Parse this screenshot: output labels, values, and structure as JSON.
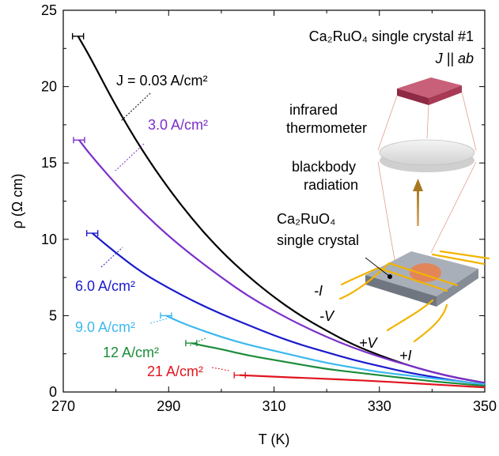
{
  "chart_data": {
    "type": "line",
    "xlabel": "T (K)",
    "ylabel": "ρ (Ω cm)",
    "xlim": [
      270,
      350
    ],
    "ylim": [
      0,
      25
    ],
    "xticks": [
      270,
      290,
      310,
      330,
      350
    ],
    "yticks": [
      0,
      5,
      10,
      15,
      20,
      25
    ],
    "series": [
      {
        "name": "J = 0.03 A/cm²",
        "color": "#000000",
        "x_start": 272.8,
        "y_start": 23.3,
        "x": [
          272.8,
          275,
          280,
          285,
          290,
          295,
          300,
          305,
          310,
          315,
          320,
          325,
          330,
          335,
          340,
          345,
          350
        ],
        "y": [
          23.3,
          22.0,
          18.7,
          15.8,
          13.3,
          11.1,
          9.2,
          7.6,
          6.2,
          5.0,
          4.0,
          3.1,
          2.4,
          1.8,
          1.3,
          0.9,
          0.6
        ]
      },
      {
        "name": "3.0 A/cm²",
        "color": "#7b2fc9",
        "x_start": 273.0,
        "y_start": 16.5,
        "x": [
          273,
          275,
          280,
          285,
          290,
          295,
          300,
          305,
          310,
          315,
          320,
          325,
          330,
          335,
          340,
          345,
          350
        ],
        "y": [
          16.5,
          15.6,
          13.6,
          11.8,
          10.2,
          8.8,
          7.5,
          6.3,
          5.3,
          4.4,
          3.6,
          2.9,
          2.3,
          1.8,
          1.3,
          0.9,
          0.6
        ]
      },
      {
        "name": "6.0 A/cm²",
        "color": "#1a1acc",
        "x_start": 275.5,
        "y_start": 10.4,
        "x": [
          275.5,
          280,
          285,
          290,
          295,
          300,
          305,
          310,
          315,
          320,
          325,
          330,
          335,
          340,
          345,
          350
        ],
        "y": [
          10.4,
          9.1,
          7.8,
          6.8,
          5.9,
          5.1,
          4.4,
          3.7,
          3.1,
          2.6,
          2.1,
          1.7,
          1.3,
          1.0,
          0.7,
          0.5
        ]
      },
      {
        "name": "9.0 A/cm²",
        "color": "#3cb8f0",
        "x_start": 289.5,
        "y_start": 5.0,
        "x": [
          289.5,
          292,
          295,
          300,
          305,
          310,
          315,
          320,
          325,
          330,
          335,
          340,
          345,
          350
        ],
        "y": [
          5.0,
          4.6,
          4.2,
          3.6,
          3.1,
          2.7,
          2.3,
          1.9,
          1.6,
          1.3,
          1.1,
          0.9,
          0.7,
          0.5
        ]
      },
      {
        "name": "12 A/cm²",
        "color": "#1a8c3a",
        "x_start": 294.3,
        "y_start": 3.2,
        "x": [
          294.3,
          297,
          300,
          305,
          310,
          315,
          320,
          325,
          330,
          335,
          340,
          345,
          350
        ],
        "y": [
          3.2,
          3.0,
          2.8,
          2.4,
          2.1,
          1.8,
          1.5,
          1.3,
          1.1,
          0.9,
          0.7,
          0.55,
          0.4
        ]
      },
      {
        "name": "21 A/cm²",
        "color": "#e0141e",
        "x_start": 303.5,
        "y_start": 1.1,
        "x": [
          303.5,
          305,
          310,
          315,
          320,
          325,
          330,
          335,
          340,
          345,
          350
        ],
        "y": [
          1.1,
          1.08,
          1.0,
          0.93,
          0.86,
          0.78,
          0.7,
          0.6,
          0.5,
          0.4,
          0.3
        ]
      }
    ],
    "labels": [
      {
        "text": "J = 0.03 A/cm²",
        "color": "#000000"
      },
      {
        "text": "3.0 A/cm²",
        "color": "#7b2fc9"
      },
      {
        "text": "6.0 A/cm²",
        "color": "#1a1acc"
      },
      {
        "text": "9.0 A/cm²",
        "color": "#3cb8f0"
      },
      {
        "text": "12 A/cm²",
        "color": "#1a8c3a"
      },
      {
        "text": "21 A/cm²",
        "color": "#e0141e"
      }
    ],
    "inset": {
      "title_line1": "Ca₂RuO₄ single crystal #1",
      "title_line2": "J || ab",
      "label_thermometer": [
        "infrared",
        "thermometer"
      ],
      "label_radiation": [
        "blackbody",
        "radiation"
      ],
      "label_crystal": [
        "Ca₂RuO₄",
        "single crystal"
      ],
      "terminals": [
        "-I",
        "-V",
        "+V",
        "+I"
      ]
    }
  }
}
